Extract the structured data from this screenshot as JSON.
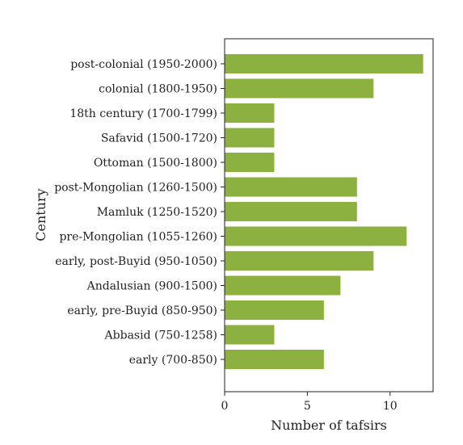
{
  "chart_data": {
    "type": "bar",
    "orientation": "horizontal",
    "categories": [
      "post-colonial (1950-2000)",
      "colonial (1800-1950)",
      "18th century (1700-1799)",
      "Safavid (1500-1720)",
      "Ottoman (1500-1800)",
      "post-Mongolian (1260-1500)",
      "Mamluk (1250-1520)",
      "pre-Mongolian (1055-1260)",
      "early, post-Buyid (950-1050)",
      "Andalusian (900-1500)",
      "early, pre-Buyid (850-950)",
      "Abbasid (750-1258)",
      "early (700-850)"
    ],
    "values": [
      12,
      9,
      3,
      3,
      3,
      8,
      8,
      11,
      9,
      7,
      6,
      3,
      6
    ],
    "xlabel": "Number of tafsirs",
    "ylabel": "Century",
    "xlim": [
      0,
      12.6
    ],
    "xticks": [
      0,
      5,
      10
    ],
    "bar_color": "#8db141",
    "grid": false,
    "legend": "none"
  }
}
